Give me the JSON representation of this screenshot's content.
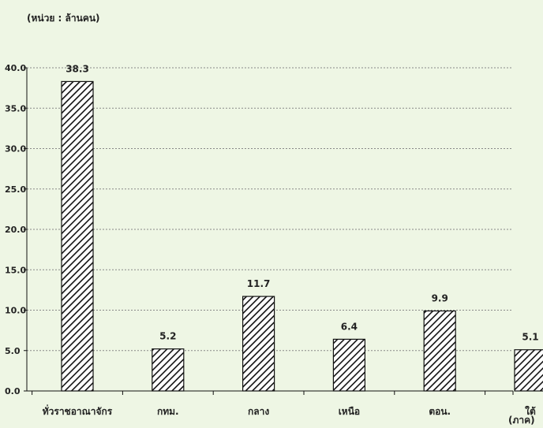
{
  "chart_data": {
    "type": "bar",
    "y_unit_label": "(หน่วย : ล้านคน)",
    "x_unit_label": "(ภาค)",
    "categories": [
      "ทั่วราชอาณาจักร",
      "กทม.",
      "กลาง",
      "เหนือ",
      "ตอน.",
      "ใต้"
    ],
    "values": [
      38.3,
      5.2,
      11.7,
      6.4,
      9.9,
      5.1
    ],
    "value_labels": [
      "38.3",
      "5.2",
      "11.7",
      "6.4",
      "9.9",
      "5.1"
    ],
    "ylim": [
      0,
      40
    ],
    "yticks": [
      "0.0",
      "5.0",
      "10.0",
      "15.0",
      "20.0",
      "25.0",
      "30.0",
      "35.0",
      "40.0"
    ],
    "grid": true,
    "bar_fill": "diagonal-hatch",
    "colors": {
      "background": "#eef6e4",
      "bar_stroke": "#111111",
      "grid": "#888888"
    }
  }
}
